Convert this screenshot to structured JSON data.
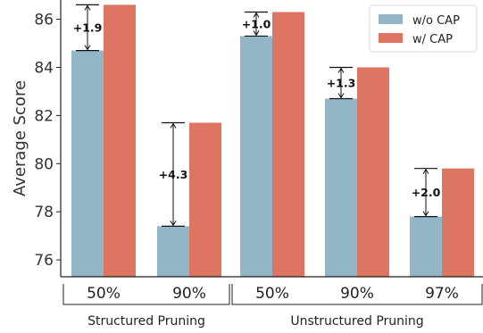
{
  "chart_data": {
    "type": "bar",
    "ylabel": "Average Score",
    "ylim": [
      75.3,
      86.8
    ],
    "yticks": [
      76,
      78,
      80,
      82,
      84,
      86
    ],
    "categories": [
      "50%",
      "90%",
      "50%",
      "90%",
      "97%"
    ],
    "groups": [
      {
        "label": "Structured Pruning",
        "indices": [
          0,
          1
        ]
      },
      {
        "label": "Unstructured Pruning",
        "indices": [
          2,
          3,
          4
        ]
      }
    ],
    "series": [
      {
        "name": "w/o CAP",
        "color": "#93b5c8",
        "values": [
          84.7,
          77.4,
          85.3,
          82.7,
          77.8
        ]
      },
      {
        "name": "w/ CAP",
        "color": "#de7563",
        "values": [
          86.6,
          81.7,
          86.3,
          84.0,
          79.8
        ]
      }
    ],
    "annotations": [
      "+1.9",
      "+4.3",
      "+1.0",
      "+1.3",
      "+2.0"
    ],
    "legend": {
      "position": "top-right"
    },
    "grid": false
  }
}
